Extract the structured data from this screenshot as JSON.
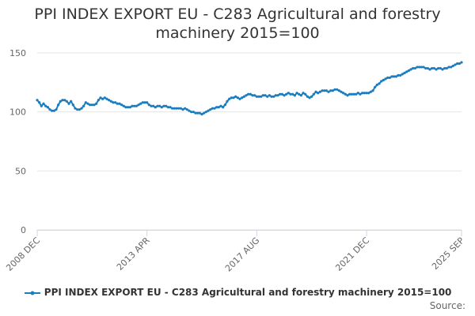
{
  "chart_data": {
    "type": "line",
    "title": "PPI INDEX EXPORT EU - C283 Agricultural and forestry machinery 2015=100",
    "source": "Source:",
    "categories": [
      "2008 DEC",
      null,
      null,
      null,
      null,
      null,
      null,
      null,
      null,
      null,
      null,
      null,
      null,
      null,
      null,
      null,
      null,
      null,
      null,
      null,
      null,
      null,
      null,
      null,
      null,
      null,
      null,
      null,
      null,
      null,
      null,
      null,
      null,
      null,
      null,
      null,
      null,
      null,
      null,
      null,
      null,
      null,
      null,
      null,
      null,
      null,
      null,
      null,
      null,
      null,
      null,
      null,
      "2013 APR",
      null,
      null,
      null,
      null,
      null,
      null,
      null,
      null,
      null,
      null,
      null,
      null,
      null,
      null,
      null,
      null,
      null,
      null,
      null,
      null,
      null,
      null,
      null,
      null,
      null,
      null,
      null,
      null,
      null,
      null,
      null,
      null,
      null,
      null,
      null,
      null,
      null,
      null,
      null,
      null,
      null,
      null,
      null,
      null,
      null,
      null,
      null,
      null,
      null,
      null,
      null,
      "2017 AUG",
      null,
      null,
      null,
      null,
      null,
      null,
      null,
      null,
      null,
      null,
      null,
      null,
      null,
      null,
      null,
      null,
      null,
      null,
      null,
      null,
      null,
      null,
      null,
      null,
      null,
      null,
      null,
      null,
      null,
      null,
      null,
      null,
      null,
      null,
      null,
      null,
      null,
      null,
      null,
      null,
      null,
      null,
      null,
      null,
      null,
      null,
      null,
      null,
      null,
      null,
      null,
      "2021 DEC",
      null,
      null,
      null,
      null,
      null,
      null,
      null,
      null,
      null,
      null,
      null,
      null,
      null,
      null,
      null,
      null,
      null,
      null,
      null,
      null,
      null,
      null,
      null,
      null,
      null,
      null,
      null,
      null,
      null,
      null,
      null,
      null,
      null,
      null,
      null,
      null,
      null,
      null,
      null,
      null,
      null,
      null,
      null,
      null,
      "2025 SEP"
    ],
    "series": [
      {
        "name": "PPI INDEX EXPORT EU - C283 Agricultural and forestry machinery 2015=100",
        "color": "#1a7dc0",
        "values": [
          110,
          108,
          105,
          107,
          105,
          104,
          102,
          101,
          101,
          102,
          106,
          109,
          110,
          110,
          109,
          107,
          109,
          106,
          103,
          102,
          102,
          103,
          105,
          108,
          107,
          106,
          106,
          106,
          107,
          110,
          112,
          111,
          112,
          111,
          110,
          109,
          108,
          108,
          107,
          107,
          106,
          105,
          104,
          104,
          104,
          105,
          105,
          105,
          106,
          107,
          108,
          108,
          108,
          106,
          105,
          105,
          104,
          105,
          105,
          104,
          105,
          105,
          104,
          104,
          103,
          103,
          103,
          103,
          103,
          102,
          103,
          102,
          101,
          100,
          100,
          99,
          99,
          99,
          98,
          99,
          100,
          101,
          102,
          103,
          103,
          104,
          104,
          105,
          104,
          106,
          109,
          111,
          112,
          112,
          113,
          112,
          111,
          112,
          113,
          114,
          115,
          115,
          114,
          114,
          113,
          113,
          113,
          114,
          114,
          113,
          114,
          113,
          113,
          114,
          114,
          115,
          115,
          114,
          115,
          116,
          115,
          115,
          114,
          116,
          115,
          114,
          116,
          115,
          113,
          112,
          113,
          115,
          117,
          116,
          117,
          118,
          118,
          118,
          117,
          118,
          118,
          119,
          119,
          118,
          117,
          116,
          115,
          114,
          115,
          115,
          115,
          115,
          116,
          115,
          116,
          116,
          116,
          116,
          117,
          118,
          121,
          123,
          124,
          126,
          127,
          128,
          129,
          129,
          130,
          130,
          130,
          131,
          131,
          132,
          133,
          134,
          135,
          136,
          137,
          137,
          138,
          138,
          138,
          138,
          137,
          137,
          136,
          137,
          137,
          136,
          137,
          137,
          136,
          137,
          137,
          138,
          138,
          139,
          140,
          141,
          141,
          142
        ]
      }
    ],
    "ylim": [
      0,
      150
    ],
    "yticks": [
      0,
      50,
      100,
      150
    ],
    "grid": true
  }
}
